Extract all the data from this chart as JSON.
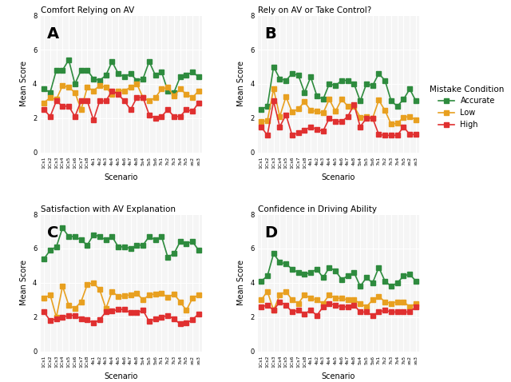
{
  "scenarios": [
    "1Cs1",
    "1Cs2",
    "1Cs3",
    "1Cs4",
    "1Cs5",
    "1Cs6",
    "1Cs7",
    "1Cs8",
    "4s1",
    "4s2",
    "4s3",
    "4s4",
    "4s5",
    "4s6",
    "4s7",
    "4s8",
    "5s4",
    "5s5",
    "5s6",
    "7s1",
    "7s2",
    "7s3",
    "7s4",
    "7s5",
    "xs2",
    "xs3"
  ],
  "panel_A_title": "Comfort Relying on AV",
  "panel_B_title": "Rely on AV or Take Control?",
  "panel_C_title": "Satisfaction with AV Explanation",
  "panel_D_title": "Confidence in Driving Ability",
  "legend_title": "Mistake Condition",
  "legend_entries": [
    "Accurate",
    "Low",
    "High"
  ],
  "colors": {
    "accurate": "#2e8b3e",
    "low": "#e8a020",
    "high": "#e03030"
  },
  "ylabel": "Mean Score",
  "xlabel": "Scenario",
  "ylim_AB": [
    0,
    8
  ],
  "ylim_CD": [
    0,
    8
  ],
  "panel_A": {
    "accurate": [
      3.7,
      3.5,
      4.8,
      4.8,
      5.4,
      4.0,
      4.8,
      4.8,
      4.3,
      4.2,
      4.5,
      5.3,
      4.6,
      4.4,
      4.6,
      4.2,
      4.3,
      5.3,
      4.5,
      4.7,
      3.6,
      3.5,
      4.4,
      4.5,
      4.7,
      4.4
    ],
    "low": [
      2.9,
      3.2,
      3.1,
      3.9,
      3.8,
      3.5,
      2.5,
      3.8,
      3.6,
      3.9,
      3.8,
      3.4,
      3.6,
      3.6,
      3.8,
      4.0,
      3.2,
      3.0,
      3.2,
      3.7,
      3.8,
      3.3,
      3.7,
      3.4,
      3.2,
      3.6
    ],
    "high": [
      2.5,
      2.1,
      3.0,
      2.7,
      2.7,
      2.1,
      3.0,
      3.0,
      1.9,
      3.0,
      3.0,
      3.6,
      3.4,
      3.0,
      2.5,
      3.2,
      3.2,
      2.2,
      2.0,
      2.1,
      2.5,
      2.1,
      2.1,
      2.5,
      2.4,
      2.9
    ]
  },
  "panel_B": {
    "accurate": [
      2.5,
      2.7,
      5.0,
      4.3,
      4.2,
      4.6,
      4.5,
      3.5,
      4.4,
      3.3,
      3.1,
      4.0,
      3.9,
      4.2,
      4.2,
      4.0,
      3.0,
      4.0,
      3.9,
      4.6,
      4.2,
      3.0,
      2.7,
      3.1,
      3.7,
      3.0
    ],
    "low": [
      1.8,
      1.85,
      3.7,
      2.1,
      3.25,
      2.35,
      2.55,
      2.95,
      2.45,
      2.4,
      2.3,
      3.1,
      2.4,
      3.1,
      2.7,
      2.7,
      2.05,
      2.1,
      2.0,
      3.05,
      2.45,
      1.65,
      1.7,
      2.05,
      2.1,
      1.9
    ],
    "high": [
      1.5,
      1.0,
      3.0,
      1.5,
      2.2,
      1.0,
      1.15,
      1.3,
      1.5,
      1.35,
      1.25,
      2.0,
      1.8,
      1.8,
      2.1,
      2.8,
      1.5,
      2.0,
      2.0,
      1.05,
      1.0,
      1.0,
      1.0,
      1.5,
      1.05,
      1.05
    ]
  },
  "panel_C": {
    "accurate": [
      5.4,
      5.9,
      6.1,
      7.2,
      6.7,
      6.7,
      6.5,
      6.2,
      6.8,
      6.7,
      6.5,
      6.7,
      6.1,
      6.1,
      6.0,
      6.2,
      6.2,
      6.7,
      6.5,
      6.7,
      5.5,
      5.7,
      6.4,
      6.3,
      6.4,
      5.9
    ],
    "low": [
      3.1,
      3.3,
      2.0,
      3.8,
      2.7,
      2.5,
      2.9,
      3.9,
      4.0,
      3.6,
      2.5,
      3.5,
      3.2,
      3.25,
      3.3,
      3.4,
      3.0,
      3.3,
      3.35,
      3.4,
      3.15,
      3.35,
      2.9,
      2.4,
      3.1,
      3.3
    ],
    "high": [
      2.3,
      1.8,
      1.9,
      2.0,
      2.1,
      2.1,
      1.9,
      1.85,
      1.65,
      1.85,
      2.3,
      2.35,
      2.45,
      2.45,
      2.25,
      2.25,
      2.4,
      1.75,
      1.9,
      2.0,
      2.1,
      1.9,
      1.6,
      1.65,
      1.85,
      2.2
    ]
  },
  "panel_D": {
    "accurate": [
      4.1,
      4.4,
      5.7,
      5.2,
      5.1,
      4.8,
      4.6,
      4.5,
      4.6,
      4.8,
      4.3,
      4.9,
      4.7,
      4.2,
      4.4,
      4.6,
      3.8,
      4.3,
      4.0,
      4.9,
      4.1,
      3.8,
      4.0,
      4.4,
      4.5,
      4.1
    ],
    "low": [
      3.0,
      3.5,
      2.4,
      3.3,
      3.5,
      3.0,
      2.8,
      3.3,
      3.1,
      3.0,
      2.8,
      3.3,
      3.1,
      3.1,
      3.0,
      3.0,
      2.8,
      2.6,
      3.0,
      3.2,
      2.9,
      2.8,
      2.9,
      2.9,
      2.6,
      2.8
    ],
    "high": [
      2.6,
      2.7,
      2.4,
      2.9,
      2.7,
      2.3,
      2.4,
      2.2,
      2.4,
      2.1,
      2.6,
      2.8,
      2.7,
      2.6,
      2.6,
      2.7,
      2.3,
      2.3,
      2.1,
      2.3,
      2.4,
      2.3,
      2.3,
      2.3,
      2.3,
      2.6
    ]
  },
  "x_labels_A": [
    "1Cs1",
    "1Cs2",
    "1Cs3",
    "1Cs4",
    "1Cs5",
    "1Cs6",
    "1Cs7",
    "1Cs8",
    "4s1",
    "4s2",
    "4s3",
    "4s4",
    "4s5",
    "4s6",
    "4s7",
    "4s8",
    "5s4",
    "5s5",
    "5s6",
    "7s1",
    "7s2",
    "7s3",
    "7s4",
    "7s5",
    "xs2",
    "xs3"
  ],
  "x_labels_B": [
    "1Cs1",
    "1Cs2",
    "1Cs3",
    "1Cs4",
    "1Cs5",
    "1Cs6",
    "1Cs7",
    "1Cs8",
    "4s1",
    "4s2",
    "4s3",
    "4s4",
    "4s5",
    "4s6",
    "4s7",
    "4s8",
    "5s4",
    "5s5",
    "5s6",
    "7s1",
    "7s2",
    "7s3",
    "7s4",
    "7s5",
    "xs2",
    "xs3"
  ],
  "x_labels_C": [
    "1Cs1",
    "1Cs2",
    "1Cs3",
    "1Cs4",
    "1Cs5",
    "1Cs6",
    "1Cs7",
    "1Cs8",
    "4s1",
    "4s2",
    "4s3",
    "4s4",
    "4s5",
    "4s6",
    "4s7",
    "4s8",
    "5s4",
    "5s5",
    "5s6",
    "7s1",
    "7s2",
    "7s3",
    "7s4",
    "7s5",
    "xs2",
    "xs3"
  ],
  "x_labels_D": [
    "1Cs1",
    "1Cs2",
    "1Cs3",
    "1Cs4",
    "1Cs5",
    "1Cs6",
    "1Cs7",
    "1Cs8",
    "4s1",
    "4s2",
    "4s3",
    "4s4",
    "4s5",
    "4s6",
    "4s7",
    "4s8",
    "5s4",
    "5s5",
    "5s6",
    "7s1",
    "7s2",
    "7s3",
    "7s4",
    "7s5",
    "xs2",
    "xs3"
  ],
  "bg_color": "#f5f5f5",
  "marker": "s",
  "markersize": 4,
  "linewidth": 1.2
}
